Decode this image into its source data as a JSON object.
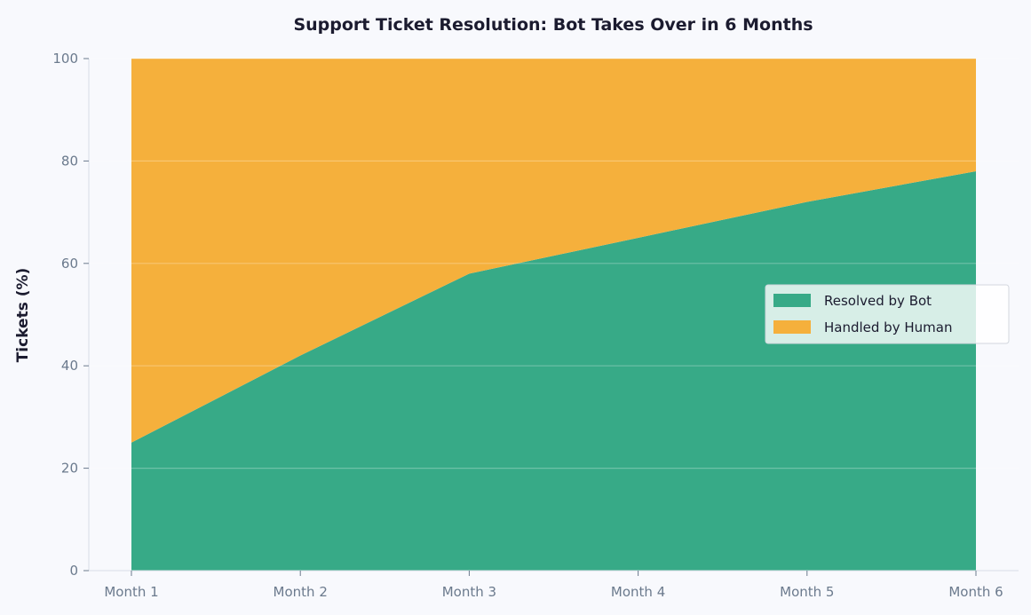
{
  "chart_data": {
    "type": "area",
    "stacked": true,
    "title": "Support Ticket Resolution: Bot Takes Over in 6 Months",
    "xlabel": "",
    "ylabel": "Tickets (%)",
    "categories": [
      "Month 1",
      "Month 2",
      "Month 3",
      "Month 4",
      "Month 5",
      "Month 6"
    ],
    "series": [
      {
        "name": "Resolved by Bot",
        "color": "#37aa87",
        "values": [
          25,
          42,
          58,
          65,
          72,
          78
        ]
      },
      {
        "name": "Handled by Human",
        "color": "#f5b03c",
        "values": [
          75,
          58,
          42,
          35,
          28,
          22
        ]
      }
    ],
    "ylim": [
      0,
      100
    ],
    "yticks": [
      "0",
      "20",
      "40",
      "60",
      "80",
      "100"
    ],
    "grid": true,
    "legend": "center-right"
  }
}
